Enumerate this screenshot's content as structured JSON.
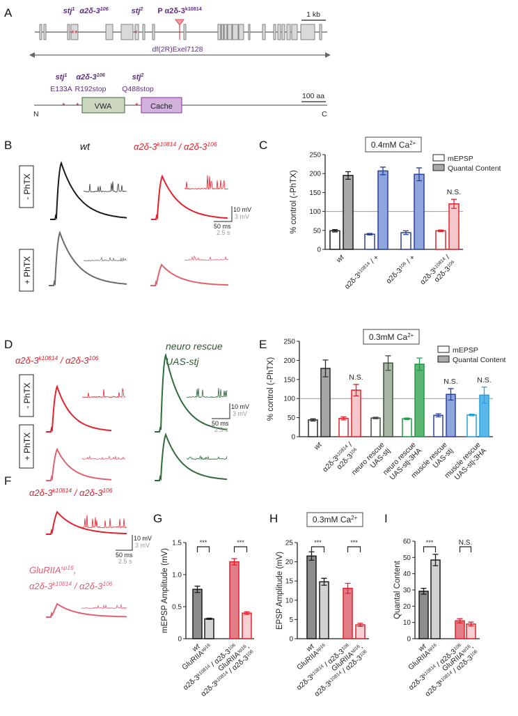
{
  "panels": {
    "A": "A",
    "B": "B",
    "C": "C",
    "D": "D",
    "E": "E",
    "F": "F",
    "G": "G",
    "H": "H",
    "I": "I"
  },
  "gene": {
    "stj1": "stj^{1}",
    "a106": "α2δ-3^{106}",
    "stj2": "stj^{2}",
    "pelement": "P α2δ-3^{k10814}",
    "scale": "1 kb",
    "deficiency": "df(2R)Exel7128"
  },
  "protein": {
    "stj1": "stj^{1}",
    "stj1_mut": "E133A",
    "a106": "α2δ-3^{106}",
    "a106_mut": "R192stop",
    "stj2": "stj^{2}",
    "stj2_mut": "Q488stop",
    "vwa": "VWA",
    "cache": "Cache",
    "scale": "100 aa",
    "n": "N",
    "c": "C"
  },
  "traces": {
    "wt": "wt",
    "mutant": "α2δ-3^{k10814} / α2δ-3^{106}",
    "minus": "- PhTX",
    "plus": "+ PhTX",
    "neuro1": "neuro rescue",
    "neuro2": "UAS-stj",
    "gluriia1": "GluRIIA^{sp16},",
    "gluriia2": "α2δ-3^{k10814} / α2δ-3^{106}",
    "scale_mv": "10 mV",
    "scale_mv2": "3 mV",
    "scale_ms": "50 ms",
    "scale_s": "2.5 s"
  },
  "colors": {
    "black": "#1a1a1a",
    "red": "#e3202b",
    "lightred": "#e06070",
    "green": "#2e6b3a",
    "grey": "#6a6a6a"
  },
  "chart_data": [
    {
      "id": "C",
      "type": "bar",
      "title": "0.4mM Ca^{2+}",
      "ylabel": "% control (-PhTX)",
      "ylim": [
        0,
        250
      ],
      "yticks": [
        0,
        50,
        100,
        150,
        200,
        250
      ],
      "refline": 100,
      "legend": [
        "mEPSP",
        "Quantal Content"
      ],
      "legend_position": "top-right",
      "categories": [
        "wt",
        "α2δ-3^{k10814} / +",
        "α2δ-3^{106} / +",
        "α2δ-3^{k10814} /\nα2δ-3^{106}"
      ],
      "series": [
        {
          "name": "mEPSP",
          "values": [
            49,
            40,
            44,
            49
          ],
          "errors": [
            3,
            2,
            5,
            2
          ]
        },
        {
          "name": "Quantal Content",
          "values": [
            195,
            207,
            198,
            120
          ],
          "errors": [
            10,
            10,
            17,
            12
          ]
        }
      ],
      "annotations": [
        "",
        "",
        "",
        "N.S."
      ],
      "colors": [
        {
          "stroke": "#1a1a1a",
          "fill": "#a8a8a8"
        },
        {
          "stroke": "#2b3f9e",
          "fill": "#8ea6db"
        },
        {
          "stroke": "#2b3f9e",
          "fill": "#8ea6db"
        },
        {
          "stroke": "#e3202b",
          "fill": "#f6c8cb"
        }
      ]
    },
    {
      "id": "E",
      "type": "bar",
      "title": "0.3mM Ca^{2+}",
      "ylabel": "% control (-PhTX)",
      "ylim": [
        0,
        250
      ],
      "yticks": [
        0,
        50,
        100,
        150,
        200,
        250
      ],
      "refline": 100,
      "legend": [
        "mEPSP",
        "Quantal Content"
      ],
      "legend_position": "top-right",
      "categories": [
        "wt",
        "α2δ-3^{k10814} /\nα2δ-3^{106}",
        "neuro rescue\nUAS-stj",
        "neuro rescue\nUAS-stj-3HA",
        "muscle rescue\nUAS-stj",
        "muscle rescue\nUAS-stj-3HA"
      ],
      "series": [
        {
          "name": "mEPSP",
          "values": [
            44,
            48,
            49,
            47,
            56,
            57
          ],
          "errors": [
            3,
            4,
            2,
            2,
            4,
            2
          ]
        },
        {
          "name": "Quantal Content",
          "values": [
            179,
            122,
            193,
            190,
            111,
            109
          ],
          "errors": [
            22,
            15,
            19,
            16,
            15,
            21
          ]
        }
      ],
      "annotations": [
        "",
        "N.S.",
        "",
        "",
        "N.S.",
        "N.S."
      ],
      "colors": [
        {
          "stroke": "#2a2a2a",
          "fill": "#a6a6a6"
        },
        {
          "stroke": "#e3202b",
          "fill": "#f6c8cb"
        },
        {
          "stroke": "#3f4f3f",
          "fill": "#a9b6a6"
        },
        {
          "stroke": "#1f9a45",
          "fill": "#5fb672"
        },
        {
          "stroke": "#2b3f9e",
          "fill": "#8ea6db"
        },
        {
          "stroke": "#22a0e0",
          "fill": "#5cb8ea"
        }
      ]
    },
    {
      "id": "G",
      "type": "bar",
      "ylabel": "mEPSP Amplitude (mV)",
      "ylim": [
        0,
        1.5
      ],
      "yticks": [
        0,
        0.5,
        1.0,
        1.5
      ],
      "ytick_labels": [
        "0",
        "0.5",
        "1.0",
        "1.5"
      ],
      "categories": [
        "wt",
        "GluRIIA^{sp16}",
        "α2δ-3^{k10814} / α2δ-3^{106}",
        "GluRIIA^{sp16},\nα2δ-3^{k10814} / α2δ-3^{106}"
      ],
      "values": [
        0.77,
        0.31,
        1.2,
        0.4
      ],
      "errors": [
        0.05,
        0.01,
        0.05,
        0.02
      ],
      "significance": [
        "***",
        "***"
      ],
      "colors": [
        {
          "stroke": "#1a1a1a",
          "fill": "#8c8c8c"
        },
        {
          "stroke": "#1a1a1a",
          "fill": "#d2d2d2"
        },
        {
          "stroke": "#e3202b",
          "fill": "#e07d87"
        },
        {
          "stroke": "#e3202b",
          "fill": "#f7d0d3"
        }
      ]
    },
    {
      "id": "H",
      "type": "bar",
      "title": "0.3mM Ca^{2+}",
      "ylabel": "EPSP Amplitude (mV)",
      "ylim": [
        0,
        25
      ],
      "yticks": [
        0,
        5,
        10,
        15,
        20,
        25
      ],
      "ytick_labels": [
        "0",
        "5",
        "10",
        "15",
        "20",
        "25"
      ],
      "categories": [
        "wt",
        "GluRIIA^{sp16}",
        "α2δ-3^{k10814} / α2δ-3^{106}",
        "GluRIIA^{sp16},\nα2δ-3^{k10814} / α2δ-3^{106}"
      ],
      "values": [
        21.5,
        14.8,
        13.1,
        3.6
      ],
      "errors": [
        1.1,
        0.9,
        1.3,
        0.4
      ],
      "significance": [
        "***",
        "***"
      ],
      "colors": [
        {
          "stroke": "#1a1a1a",
          "fill": "#8c8c8c"
        },
        {
          "stroke": "#1a1a1a",
          "fill": "#d2d2d2"
        },
        {
          "stroke": "#e3202b",
          "fill": "#e07d87"
        },
        {
          "stroke": "#e3202b",
          "fill": "#f7d0d3"
        }
      ]
    },
    {
      "id": "I",
      "type": "bar",
      "ylabel": "Quantal Content",
      "ylim": [
        0,
        60
      ],
      "yticks": [
        0,
        10,
        20,
        30,
        40,
        50,
        60
      ],
      "ytick_labels": [
        "0",
        "10",
        "20",
        "30",
        "40",
        "50",
        "60"
      ],
      "categories": [
        "wt",
        "GluRIIA^{sp16}",
        "α2δ-3^{k10814} / α2δ-3^{106}",
        "GluRIIA^{sp16},\nα2δ-3^{k10814} / α2δ-3^{106}"
      ],
      "values": [
        29.2,
        48.4,
        11.0,
        9.0
      ],
      "errors": [
        1.8,
        3.5,
        1.3,
        1.2
      ],
      "significance": [
        "***",
        "N.S."
      ],
      "colors": [
        {
          "stroke": "#1a1a1a",
          "fill": "#8c8c8c"
        },
        {
          "stroke": "#1a1a1a",
          "fill": "#d2d2d2"
        },
        {
          "stroke": "#e3202b",
          "fill": "#e07d87"
        },
        {
          "stroke": "#e3202b",
          "fill": "#f7d0d3"
        }
      ]
    }
  ]
}
